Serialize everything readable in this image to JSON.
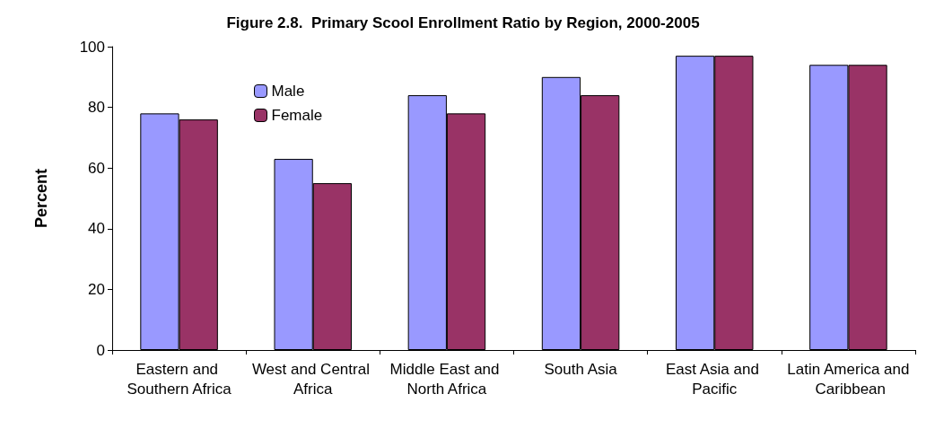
{
  "chart_data": {
    "type": "bar",
    "title": "Figure 2.8.  Primary Scool Enrollment Ratio by Region, 2000-2005",
    "ylabel": "Percent",
    "categories": [
      "Eastern and Southern Africa",
      "West and Central Africa",
      "Middle East and North Africa",
      "South Asia",
      "East Asia and Pacific",
      "Latin America and Caribbean"
    ],
    "series": [
      {
        "name": "Male",
        "color": "#9999ff",
        "values": [
          78,
          63,
          84,
          90,
          97,
          94
        ]
      },
      {
        "name": "Female",
        "color": "#993366",
        "values": [
          76,
          55,
          78,
          84,
          97,
          94
        ]
      }
    ],
    "ylim": [
      0,
      100
    ],
    "yticks": [
      0,
      20,
      40,
      60,
      80,
      100
    ],
    "grid": false,
    "legend": "top left"
  }
}
